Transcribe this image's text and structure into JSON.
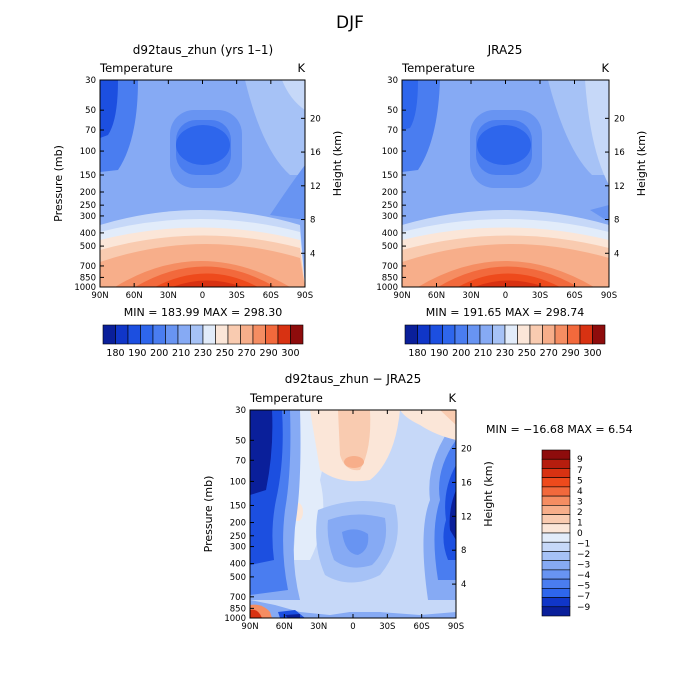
{
  "page": {
    "title": "DJF"
  },
  "colors": {
    "cool": [
      "#0a1f9a",
      "#1036c8",
      "#1c4fe0",
      "#2e66ec",
      "#4a7df0",
      "#6894f2",
      "#86aaf4",
      "#a6c2f6",
      "#c6d8f8",
      "#e2ecfa"
    ],
    "warm": [
      "#fbe6d8",
      "#f9cbb0",
      "#f7ae8a",
      "#f58d62",
      "#f2693c",
      "#ee4a1c",
      "#d83212",
      "#b61d0e",
      "#8e0c0c"
    ]
  },
  "chart_data": [
    {
      "type": "heatmap",
      "title": "d92taus_zhun (yrs 1–1)",
      "subtitle_left": "Temperature",
      "subtitle_right": "K",
      "xlabel": "",
      "ylabel": "Pressure (mb)",
      "ylabel_right": "Height (km)",
      "x_ticks": [
        "90N",
        "60N",
        "30N",
        "0",
        "30S",
        "60S",
        "90S"
      ],
      "y_ticks": [
        "30",
        "50",
        "70",
        "100",
        "150",
        "200",
        "250",
        "300",
        "400",
        "500",
        "700",
        "850",
        "1000"
      ],
      "y_ticks_right": [
        "20",
        "16",
        "12",
        "8",
        "4"
      ],
      "min_max": "MIN = 183.99   MAX = 298.30",
      "colorbar_labels": [
        "180",
        "190",
        "200",
        "210",
        "230",
        "250",
        "270",
        "290",
        "300"
      ]
    },
    {
      "type": "heatmap",
      "title": "JRA25",
      "subtitle_left": "Temperature",
      "subtitle_right": "K",
      "xlabel": "",
      "ylabel": "",
      "ylabel_right": "Height (km)",
      "x_ticks": [
        "90N",
        "60N",
        "30N",
        "0",
        "30S",
        "60S",
        "90S"
      ],
      "y_ticks": [
        "30",
        "50",
        "70",
        "100",
        "150",
        "200",
        "250",
        "300",
        "400",
        "500",
        "700",
        "850",
        "1000"
      ],
      "y_ticks_right": [
        "20",
        "16",
        "12",
        "8",
        "4"
      ],
      "min_max": "MIN = 191.65   MAX = 298.74",
      "colorbar_labels": [
        "180",
        "190",
        "200",
        "210",
        "230",
        "250",
        "270",
        "290",
        "300"
      ]
    },
    {
      "type": "heatmap",
      "title": "d92taus_zhun − JRA25",
      "subtitle_left": "Temperature",
      "subtitle_right": "K",
      "xlabel": "",
      "ylabel": "Pressure (mb)",
      "ylabel_right": "Height (km)",
      "x_ticks": [
        "90N",
        "60N",
        "30N",
        "0",
        "30S",
        "60S",
        "90S"
      ],
      "y_ticks": [
        "30",
        "50",
        "70",
        "100",
        "150",
        "200",
        "250",
        "300",
        "400",
        "500",
        "700",
        "850",
        "1000"
      ],
      "y_ticks_right": [
        "20",
        "16",
        "12",
        "8",
        "4"
      ],
      "min_max": "MIN = −16.68   MAX =    6.54",
      "colorbar_labels": [
        "9",
        "7",
        "5",
        "4",
        "3",
        "2",
        "1",
        "0",
        "−1",
        "−2",
        "−3",
        "−4",
        "−5",
        "−7",
        "−9"
      ]
    }
  ]
}
